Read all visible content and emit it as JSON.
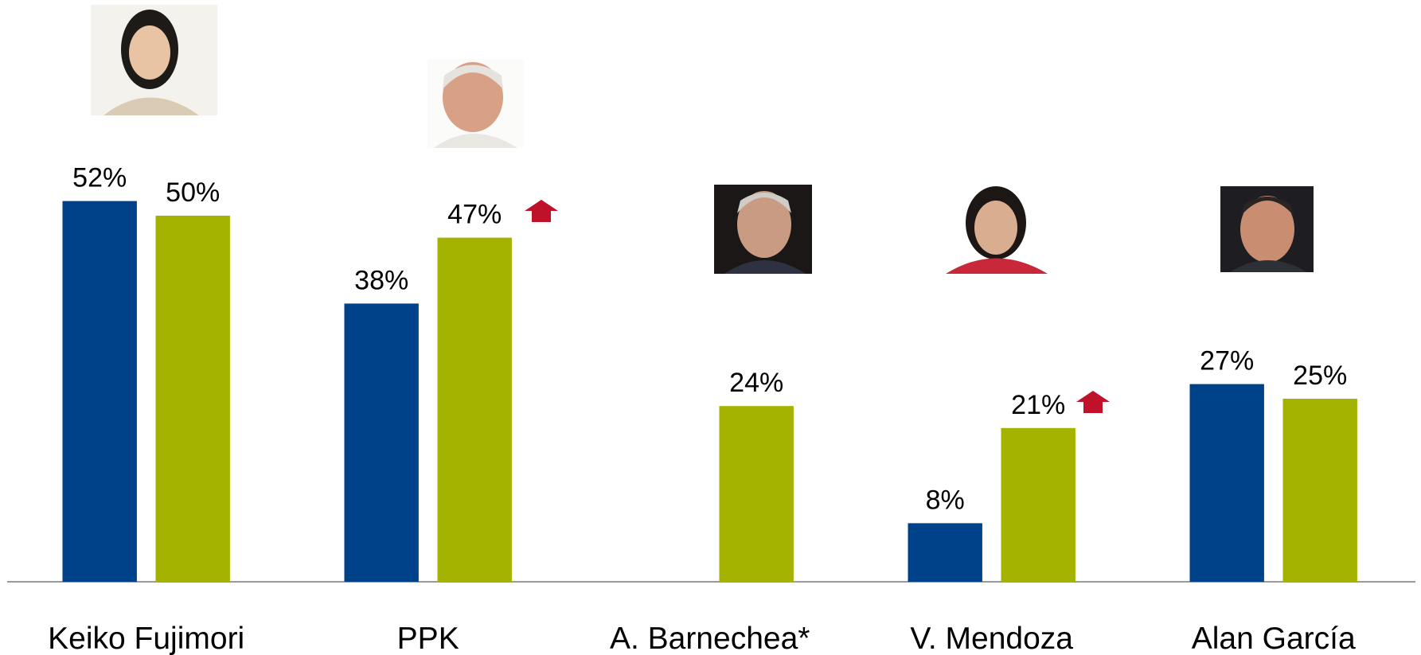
{
  "chart_data": {
    "type": "bar",
    "categories": [
      "Keiko Fujimori",
      "PPK",
      "A. Barnechea*",
      "V. Mendoza",
      "Alan García"
    ],
    "series": [
      {
        "color": "#00428a",
        "values": [
          52,
          38,
          null,
          8,
          27
        ],
        "value_labels": [
          "52%",
          "38%",
          null,
          "8%",
          "27%"
        ]
      },
      {
        "color": "#a3b300",
        "values": [
          50,
          47,
          24,
          21,
          25
        ],
        "value_labels": [
          "50%",
          "47%",
          "24%",
          "21%",
          "25%"
        ]
      }
    ]
  }
}
